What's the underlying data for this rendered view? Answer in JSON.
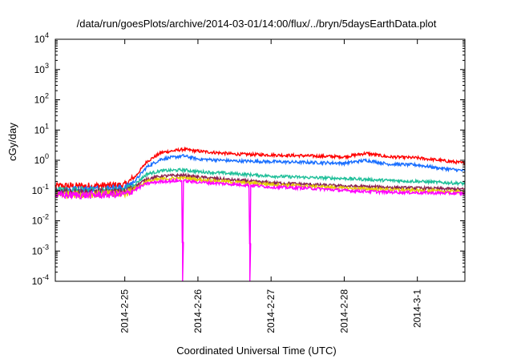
{
  "chart_data": {
    "type": "line",
    "title": "/data/run/goesPlots/archive/2014-03-01/14:00/flux/../bryn/5daysEarthData.plot",
    "xlabel": "Coordinated Universal Time (UTC)",
    "ylabel": "cGy/day",
    "yscale": "log",
    "ylim": [
      0.0001,
      10000
    ],
    "xlim": [
      -0.95,
      4.65
    ],
    "x_unit_note": "days relative to 2014-2-25",
    "grid": false,
    "legend": "none",
    "y_ticks": [
      {
        "exp": "-4",
        "value": 0.0001
      },
      {
        "exp": "-3",
        "value": 0.001
      },
      {
        "exp": "-2",
        "value": 0.01
      },
      {
        "exp": "-1",
        "value": 0.1
      },
      {
        "exp": "0",
        "value": 1
      },
      {
        "exp": "1",
        "value": 10
      },
      {
        "exp": "2",
        "value": 100
      },
      {
        "exp": "3",
        "value": 1000
      },
      {
        "exp": "4",
        "value": 10000
      }
    ],
    "y_tick_base": "10",
    "x_ticks": [
      {
        "label": "2014-2-25",
        "value": 0
      },
      {
        "label": "2014-2-26",
        "value": 1
      },
      {
        "label": "2014-2-27",
        "value": 2
      },
      {
        "label": "2014-2-28",
        "value": 3
      },
      {
        "label": "2014-3-1",
        "value": 4
      }
    ],
    "series": [
      {
        "color": "#ff0000",
        "x": [
          -0.95,
          -0.5,
          0,
          0.15,
          0.3,
          0.5,
          0.8,
          1.0,
          1.5,
          2.0,
          2.5,
          3.0,
          3.3,
          3.6,
          4.0,
          4.3,
          4.65
        ],
        "y": [
          0.14,
          0.14,
          0.15,
          0.3,
          0.9,
          1.8,
          2.3,
          2.0,
          1.6,
          1.5,
          1.4,
          1.3,
          1.7,
          1.3,
          1.2,
          1.0,
          0.8
        ]
      },
      {
        "color": "#1a6fff",
        "x": [
          -0.95,
          -0.5,
          0,
          0.15,
          0.3,
          0.5,
          0.8,
          1.0,
          1.5,
          2.0,
          2.5,
          3.0,
          3.3,
          3.6,
          4.0,
          4.3,
          4.65
        ],
        "y": [
          0.11,
          0.11,
          0.12,
          0.22,
          0.6,
          1.1,
          1.4,
          1.1,
          0.95,
          0.9,
          0.85,
          0.8,
          1.0,
          0.75,
          0.7,
          0.55,
          0.45
        ]
      },
      {
        "color": "#1fbf99",
        "x": [
          -0.95,
          -0.5,
          0,
          0.15,
          0.3,
          0.5,
          0.8,
          1.0,
          1.5,
          2.0,
          2.5,
          3.0,
          3.5,
          4.0,
          4.65
        ],
        "y": [
          0.1,
          0.1,
          0.1,
          0.17,
          0.35,
          0.45,
          0.48,
          0.42,
          0.36,
          0.3,
          0.27,
          0.25,
          0.22,
          0.2,
          0.17
        ]
      },
      {
        "color": "#8a2252",
        "x": [
          -0.95,
          -0.5,
          0,
          0.15,
          0.3,
          0.5,
          0.8,
          1.0,
          1.5,
          2.0,
          2.5,
          3.0,
          3.5,
          4.0,
          4.65
        ],
        "y": [
          0.085,
          0.085,
          0.09,
          0.14,
          0.24,
          0.3,
          0.32,
          0.28,
          0.22,
          0.18,
          0.16,
          0.14,
          0.13,
          0.12,
          0.11
        ]
      },
      {
        "color": "#e6d000",
        "x": [
          -0.95,
          -0.5,
          0,
          0.15,
          0.3,
          0.5,
          0.8,
          1.0,
          1.5,
          2.0,
          2.5,
          3.0,
          3.5,
          4.0,
          4.65
        ],
        "y": [
          0.075,
          0.075,
          0.08,
          0.12,
          0.2,
          0.24,
          0.26,
          0.23,
          0.19,
          0.16,
          0.14,
          0.12,
          0.11,
          0.1,
          0.09
        ]
      },
      {
        "color": "#ff00ff",
        "x": [
          -0.95,
          -0.5,
          0,
          0.15,
          0.3,
          0.5,
          0.78,
          0.79,
          0.8,
          1.0,
          1.5,
          1.7,
          1.71,
          1.72,
          2.0,
          2.5,
          3.0,
          3.5,
          4.0,
          4.65
        ],
        "y": [
          0.07,
          0.07,
          0.075,
          0.11,
          0.17,
          0.2,
          0.21,
          0.0001,
          0.21,
          0.19,
          0.16,
          0.15,
          0.0001,
          0.15,
          0.13,
          0.12,
          0.1,
          0.09,
          0.085,
          0.08
        ]
      }
    ]
  }
}
